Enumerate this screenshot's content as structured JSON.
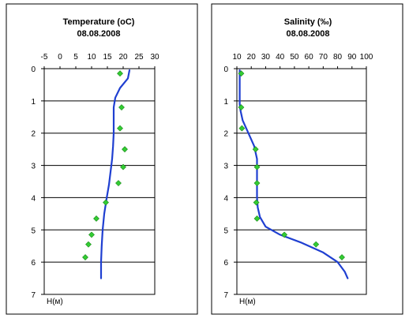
{
  "chart_data": [
    {
      "type": "scatter",
      "title": "Temperature  (oC)",
      "subtitle": "08.08.2008",
      "xlabel": "",
      "ylabel": "H(м)",
      "xlim": [
        -5,
        30
      ],
      "ylim": [
        0,
        7
      ],
      "y_inverted": true,
      "x_ticks": [
        "-5",
        "0",
        "5",
        "10",
        "15",
        "20",
        "25",
        "30"
      ],
      "y_ticks": [
        "0",
        "1",
        "2",
        "3",
        "4",
        "5",
        "6",
        "7"
      ],
      "grid": "horizontal",
      "colors": {
        "points": "#33cc33",
        "line": "#1f3fd1"
      },
      "series": [
        {
          "kind": "points",
          "x": [
            19,
            19.5,
            19,
            20.5,
            20,
            18.5,
            14.5,
            11.5,
            10,
            9,
            8
          ],
          "y": [
            0.15,
            1.2,
            1.85,
            2.5,
            3.05,
            3.55,
            4.15,
            4.65,
            5.15,
            5.45,
            5.85
          ]
        },
        {
          "kind": "line",
          "x": [
            22,
            21.5,
            19,
            17.5,
            17,
            17,
            17,
            16.8,
            16.5,
            16,
            15.5,
            14.8,
            14,
            13.5,
            13.2,
            13,
            13
          ],
          "y": [
            0.05,
            0.3,
            0.6,
            0.9,
            1.2,
            1.6,
            2.0,
            2.4,
            2.8,
            3.2,
            3.6,
            4.0,
            4.5,
            5.0,
            5.5,
            6.0,
            6.5
          ]
        }
      ]
    },
    {
      "type": "scatter",
      "title": "Salinity (‰)",
      "subtitle": "08.08.2008",
      "xlabel": "",
      "ylabel": "H(м)",
      "xlim": [
        10,
        100
      ],
      "ylim": [
        0,
        7
      ],
      "y_inverted": true,
      "x_ticks": [
        "10",
        "20",
        "30",
        "40",
        "50",
        "60",
        "70",
        "80",
        "90",
        "100"
      ],
      "y_ticks": [
        "0",
        "1",
        "2",
        "3",
        "4",
        "5",
        "6",
        "7"
      ],
      "grid": "horizontal",
      "colors": {
        "points": "#33cc33",
        "line": "#1f3fd1"
      },
      "series": [
        {
          "kind": "points",
          "x": [
            13,
            13,
            13.5,
            23,
            24,
            24,
            23.5,
            24,
            43,
            65,
            83
          ],
          "y": [
            0.15,
            1.2,
            1.85,
            2.5,
            3.05,
            3.55,
            4.15,
            4.65,
            5.15,
            5.45,
            5.85
          ]
        },
        {
          "kind": "line",
          "x": [
            12,
            12,
            12,
            12,
            12.5,
            14,
            18,
            22,
            24,
            24,
            24,
            24,
            24.5,
            26,
            30,
            40,
            55,
            70,
            80,
            85,
            87
          ],
          "y": [
            0.05,
            0.5,
            0.9,
            1.1,
            1.3,
            1.6,
            2.0,
            2.4,
            2.8,
            3.2,
            3.6,
            4.0,
            4.3,
            4.6,
            4.9,
            5.15,
            5.4,
            5.7,
            6.0,
            6.3,
            6.5
          ]
        }
      ]
    }
  ]
}
